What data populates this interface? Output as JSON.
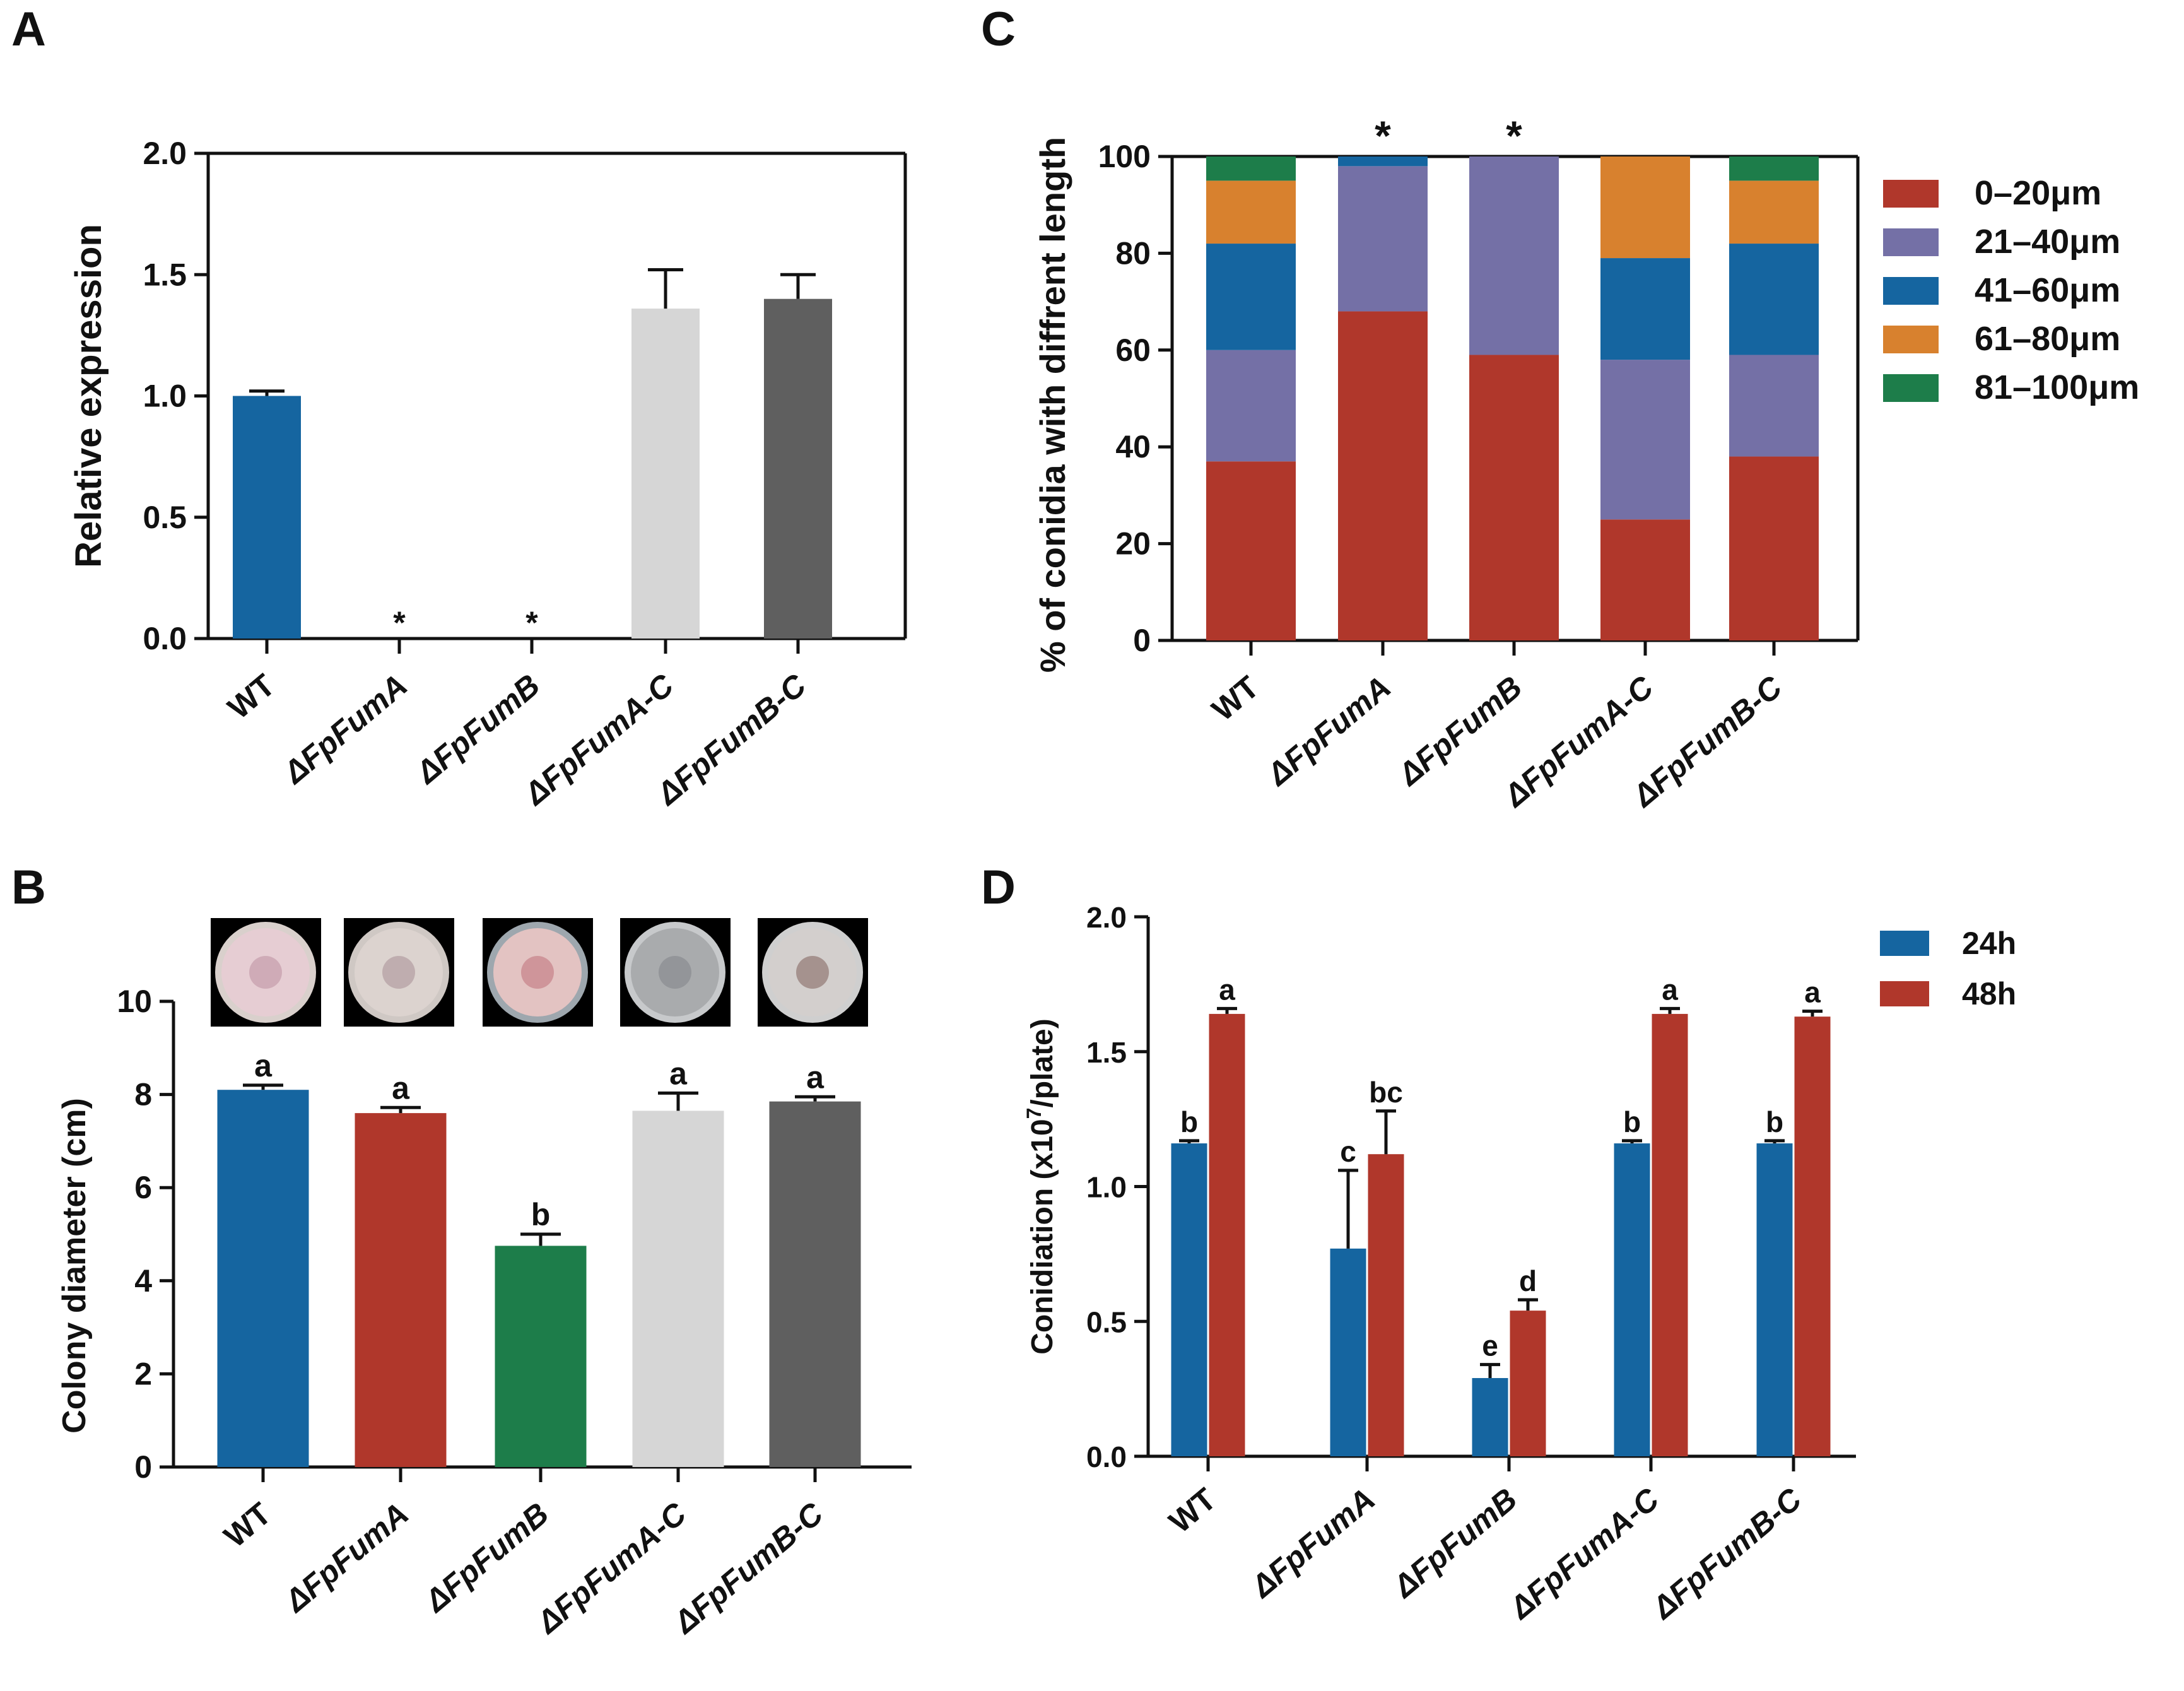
{
  "chart_data": [
    {
      "panel": "A",
      "type": "bar",
      "categories": [
        "WT",
        "ΔFpFumA",
        "ΔFpFumB",
        "ΔFpFumA-C",
        "ΔFpFumB-C"
      ],
      "values": [
        1.0,
        0.0,
        0.0,
        1.36,
        1.4
      ],
      "errors": [
        0.02,
        0,
        0,
        0.16,
        0.1
      ],
      "annotations": [
        "",
        "*",
        "*",
        "",
        ""
      ],
      "colors": [
        "#1565a0",
        "#1565a0",
        "#1565a0",
        "#d6d6d6",
        "#5f5f5f"
      ],
      "ylabel": "Relative expression",
      "ylim": [
        0,
        2.0
      ],
      "yticks": [
        "0.0",
        "0.5",
        "1.0",
        "1.5",
        "2.0"
      ]
    },
    {
      "panel": "B",
      "type": "bar",
      "categories": [
        "WT",
        "ΔFpFumA",
        "ΔFpFumB",
        "ΔFpFumA-C",
        "ΔFpFumB-C"
      ],
      "values": [
        8.1,
        7.6,
        4.75,
        7.65,
        7.85
      ],
      "errors": [
        0.1,
        0.12,
        0.25,
        0.38,
        0.1
      ],
      "annotations": [
        "a",
        "a",
        "b",
        "a",
        "a"
      ],
      "colors": [
        "#1565a0",
        "#b0372b",
        "#1d7d4a",
        "#d6d6d6",
        "#5f5f5f"
      ],
      "ylabel": "Colony diameter (cm)",
      "ylim": [
        0,
        10
      ],
      "yticks": [
        "0",
        "2",
        "4",
        "6",
        "8",
        "10"
      ],
      "plate_photos": [
        "WT colony plate",
        "ΔFpFumA colony plate",
        "ΔFpFumB colony plate",
        "ΔFpFumA-C colony plate",
        "ΔFpFumB-C colony plate"
      ]
    },
    {
      "panel": "C",
      "type": "bar",
      "stacked": true,
      "categories": [
        "WT",
        "ΔFpFumA",
        "ΔFpFumB",
        "ΔFpFumA-C",
        "ΔFpFumB-C"
      ],
      "series": [
        {
          "name": "0–20μm",
          "color": "#b0372b",
          "values": [
            37,
            68,
            59,
            25,
            38
          ]
        },
        {
          "name": "21–40μm",
          "color": "#7470a6",
          "values": [
            23,
            30,
            41,
            33,
            21
          ]
        },
        {
          "name": "41–60μm",
          "color": "#1565a0",
          "values": [
            22,
            2,
            0,
            21,
            23
          ]
        },
        {
          "name": "61–80μm",
          "color": "#d8812e",
          "values": [
            13,
            0,
            0,
            21,
            13
          ]
        },
        {
          "name": "81–100μm",
          "color": "#1d7d4a",
          "values": [
            5,
            0,
            0,
            0,
            5
          ]
        }
      ],
      "annotations": [
        "",
        "*",
        "*",
        "",
        ""
      ],
      "ylabel": "% of conidia with diffrent length",
      "ylim": [
        0,
        100
      ],
      "yticks": [
        "0",
        "20",
        "40",
        "60",
        "80",
        "100"
      ]
    },
    {
      "panel": "D",
      "type": "bar",
      "categories": [
        "WT",
        "ΔFpFumA",
        "ΔFpFumB",
        "ΔFpFumA-C",
        "ΔFpFumB-C"
      ],
      "series": [
        {
          "name": "24h",
          "color": "#1565a0",
          "values": [
            1.16,
            0.77,
            0.29,
            1.16,
            1.16
          ],
          "errors": [
            0.01,
            0.29,
            0.05,
            0.01,
            0.01
          ],
          "annotations": [
            "b",
            "c",
            "e",
            "b",
            "b"
          ]
        },
        {
          "name": "48h",
          "color": "#b0372b",
          "values": [
            1.64,
            1.12,
            0.54,
            1.64,
            1.63
          ],
          "errors": [
            0.02,
            0.16,
            0.04,
            0.02,
            0.02
          ],
          "annotations": [
            "a",
            "bc",
            "d",
            "a",
            "a"
          ]
        }
      ],
      "ylabel_main": "Conidiation (x10",
      "ylabel_sup": "7",
      "ylabel_tail": "/plate)",
      "ylim": [
        0,
        2.0
      ],
      "yticks": [
        "0.0",
        "0.5",
        "1.0",
        "1.5",
        "2.0"
      ]
    }
  ],
  "panel_labels": [
    "A",
    "B",
    "C",
    "D"
  ]
}
